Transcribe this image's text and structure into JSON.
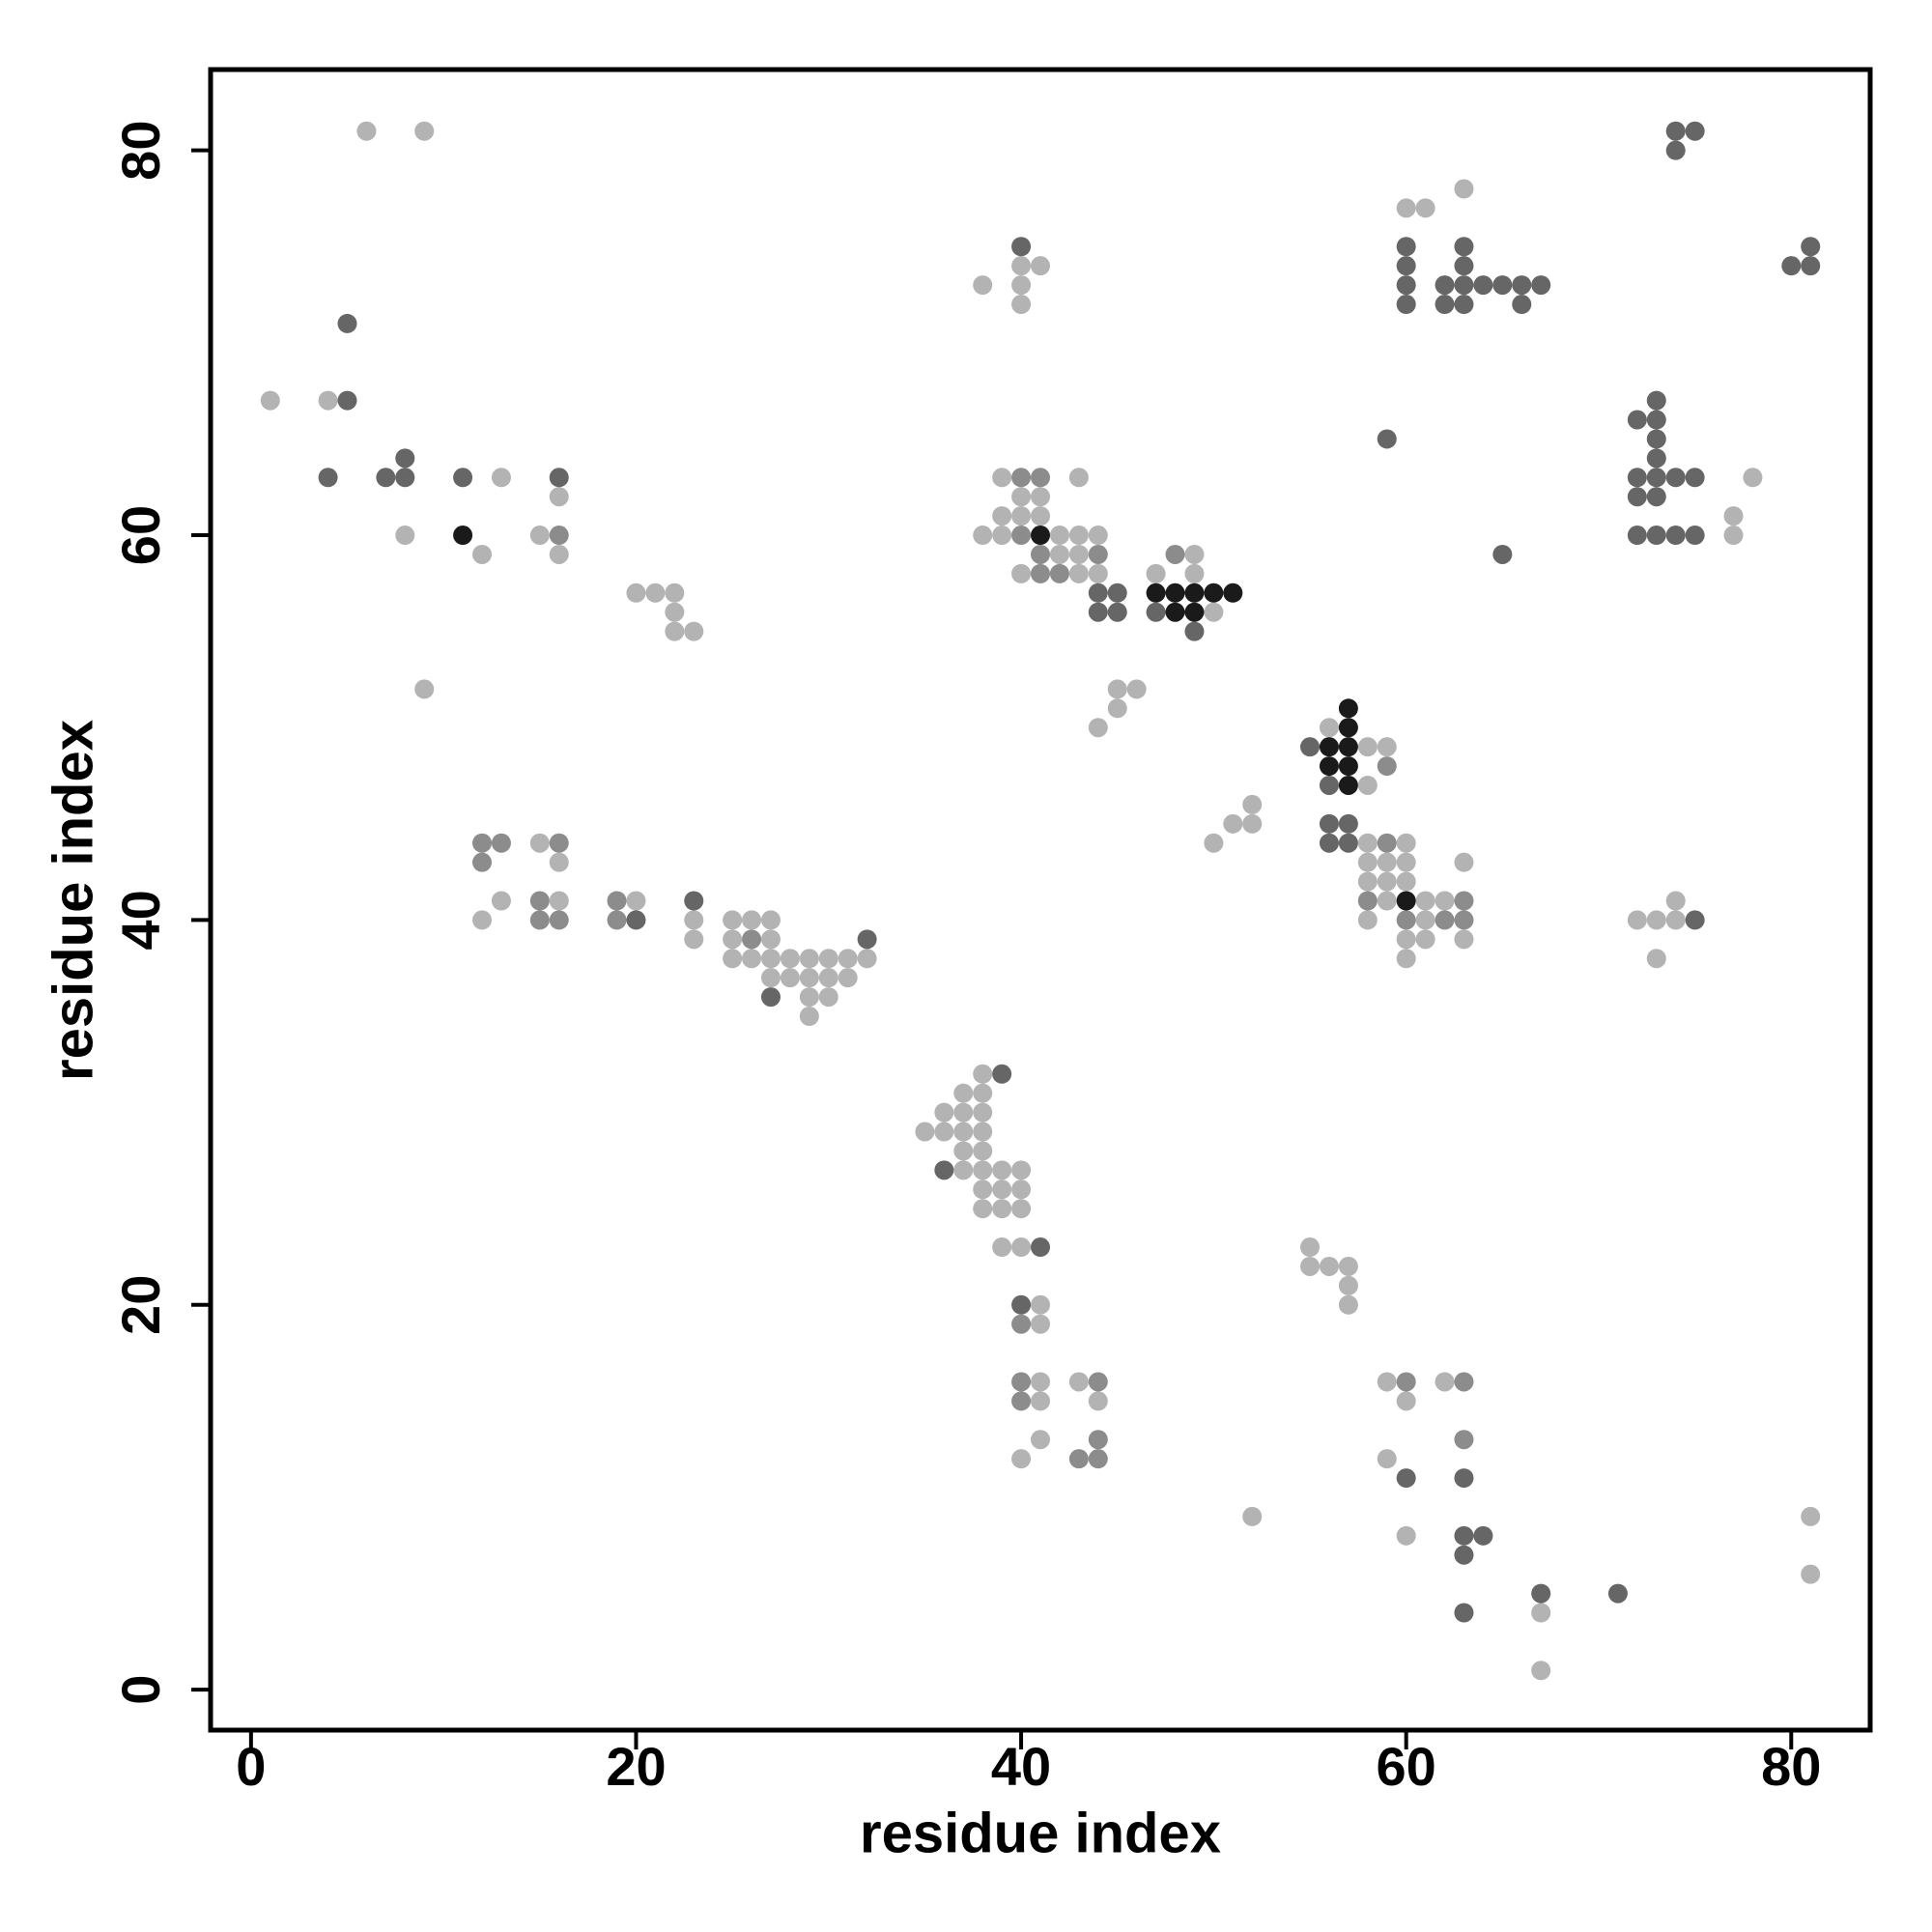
{
  "chart_data": {
    "type": "scatter",
    "x_label": "residue index",
    "y_label": "residue index",
    "xlim": [
      -2.1,
      84.1
    ],
    "ylim": [
      -2.1,
      84.2
    ],
    "xticks": [
      0,
      20,
      40,
      60,
      80
    ],
    "yticks": [
      0,
      20,
      40,
      60,
      80
    ],
    "series": [
      {
        "color": "#b3b3b3",
        "x": [
          6,
          9,
          63,
          60,
          61,
          40,
          41,
          40,
          40,
          38,
          1,
          4,
          78,
          77,
          77,
          13,
          16,
          8,
          12,
          15,
          16,
          39,
          43,
          39,
          40,
          41,
          40,
          41,
          38,
          39,
          42,
          43,
          44,
          42,
          43,
          40,
          43,
          44,
          47,
          49,
          49,
          50,
          20,
          21,
          22,
          22,
          22,
          23,
          9,
          45,
          46,
          45,
          44,
          56,
          58,
          59,
          58,
          52,
          51,
          52,
          50,
          58,
          60,
          58,
          59,
          60,
          63,
          58,
          59,
          60,
          59,
          61,
          62,
          58,
          61,
          60,
          61,
          63,
          60,
          15,
          16,
          13,
          16,
          12,
          20,
          23,
          23,
          25,
          26,
          27,
          25,
          27,
          25,
          26,
          27,
          28,
          29,
          30,
          31,
          32,
          27,
          28,
          29,
          30,
          31,
          29,
          30,
          29,
          72,
          73,
          74,
          74,
          73,
          38,
          37,
          38,
          36,
          37,
          38,
          35,
          36,
          37,
          38,
          37,
          38,
          37,
          38,
          39,
          40,
          38,
          39,
          40,
          38,
          39,
          40,
          39,
          40,
          41,
          41,
          41,
          41,
          41,
          40,
          43,
          44,
          55,
          55,
          56,
          57,
          57,
          57,
          59,
          60,
          62,
          59,
          52,
          60,
          67,
          67,
          81,
          81
        ],
        "values": [
          81,
          81,
          78,
          77,
          77,
          74,
          74,
          73,
          72,
          73,
          67,
          67,
          63,
          61,
          60,
          63,
          62,
          60,
          59,
          60,
          59,
          63,
          63,
          61,
          61,
          61,
          62,
          62,
          60,
          60,
          60,
          60,
          60,
          59,
          59,
          58,
          58,
          58,
          58,
          59,
          58,
          56,
          57,
          57,
          57,
          56,
          55,
          55,
          52,
          52,
          52,
          51,
          50,
          50,
          49,
          49,
          47,
          46,
          45,
          45,
          44,
          44,
          44,
          43,
          43,
          43,
          43,
          42,
          42,
          42,
          41,
          41,
          41,
          40,
          40,
          39,
          39,
          39,
          38,
          44,
          43,
          41,
          41,
          40,
          41,
          40,
          39,
          40,
          40,
          40,
          39,
          39,
          38,
          38,
          38,
          38,
          38,
          38,
          38,
          38,
          37,
          37,
          37,
          37,
          37,
          36,
          36,
          35,
          40,
          40,
          40,
          41,
          38,
          32,
          31,
          31,
          30,
          30,
          30,
          29,
          29,
          29,
          29,
          28,
          28,
          27,
          27,
          27,
          27,
          26,
          26,
          26,
          25,
          25,
          25,
          23,
          23,
          20,
          19,
          16,
          15,
          13,
          12,
          16,
          15,
          23,
          22,
          22,
          22,
          21,
          20,
          16,
          15,
          16,
          12,
          9,
          8,
          4,
          1,
          9,
          6
        ]
      },
      {
        "color": "#8c8c8c",
        "x": [
          16,
          40,
          41,
          40,
          41,
          44,
          41,
          42,
          48,
          59,
          59,
          58,
          63,
          60,
          62,
          63,
          12,
          13,
          12,
          16,
          15,
          15,
          16,
          19,
          19,
          26,
          40,
          40,
          40,
          44,
          44,
          43,
          44,
          60,
          63,
          63
        ],
        "values": [
          60,
          63,
          63,
          60,
          59,
          59,
          58,
          58,
          59,
          48,
          44,
          41,
          41,
          40,
          40,
          40,
          44,
          44,
          43,
          44,
          41,
          40,
          40,
          41,
          40,
          39,
          19,
          16,
          15,
          16,
          13,
          12,
          12,
          16,
          16,
          13
        ]
      },
      {
        "color": "#666666",
        "x": [
          74,
          75,
          74,
          40,
          60,
          60,
          60,
          60,
          63,
          63,
          63,
          63,
          62,
          62,
          64,
          65,
          66,
          67,
          66,
          81,
          80,
          81,
          5,
          5,
          73,
          72,
          73,
          73,
          73,
          72,
          73,
          74,
          75,
          72,
          73,
          72,
          73,
          74,
          75,
          59,
          4,
          7,
          8,
          8,
          11,
          16,
          44,
          45,
          44,
          45,
          47,
          49,
          65,
          55,
          56,
          56,
          57,
          56,
          57,
          20,
          23,
          27,
          32,
          75,
          39,
          36,
          41,
          40,
          60,
          63,
          63,
          64,
          63,
          67,
          71,
          63
        ],
        "values": [
          81,
          81,
          80,
          75,
          75,
          74,
          73,
          72,
          75,
          74,
          73,
          72,
          73,
          72,
          73,
          73,
          73,
          73,
          72,
          75,
          74,
          74,
          71,
          67,
          67,
          66,
          66,
          65,
          64,
          63,
          63,
          63,
          63,
          62,
          62,
          60,
          60,
          60,
          60,
          65,
          63,
          63,
          63,
          64,
          63,
          63,
          57,
          57,
          56,
          56,
          56,
          55,
          59,
          49,
          47,
          45,
          45,
          44,
          44,
          40,
          41,
          36,
          39,
          40,
          32,
          27,
          23,
          20,
          11,
          11,
          8,
          8,
          7,
          5,
          5,
          4
        ]
      },
      {
        "color": "#1a1a1a",
        "x": [
          11,
          41,
          47,
          48,
          49,
          50,
          51,
          48,
          49,
          57,
          57,
          56,
          57,
          56,
          57,
          57,
          60
        ],
        "values": [
          60,
          60,
          57,
          57,
          57,
          57,
          57,
          56,
          56,
          51,
          50,
          49,
          49,
          48,
          48,
          47,
          41
        ]
      }
    ]
  }
}
